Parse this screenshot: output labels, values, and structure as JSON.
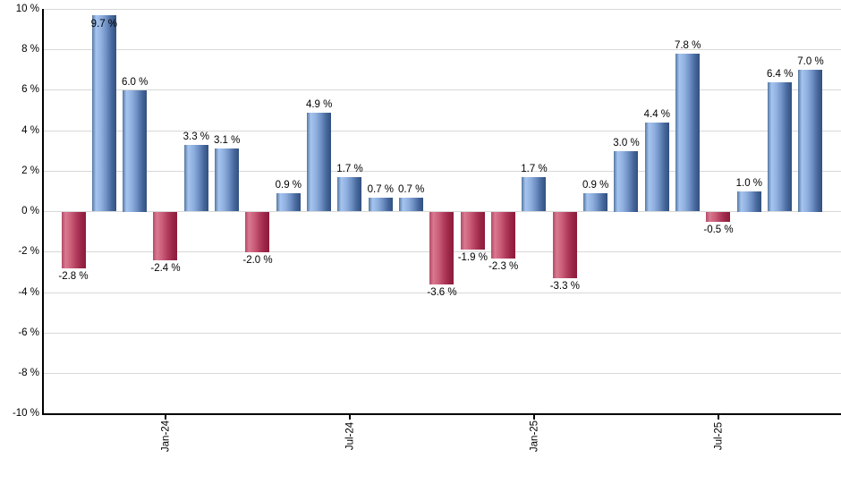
{
  "chart_data": {
    "type": "bar",
    "title": "",
    "xlabel": "",
    "ylabel": "",
    "ylim": [
      -10,
      10
    ],
    "y_tick_step": 2,
    "y_tick_labels": [
      "10 %",
      "8 %",
      "6 %",
      "4 %",
      "2 %",
      "0 %",
      "-2 %",
      "-4 %",
      "-6 %",
      "-8 %",
      "-10 %"
    ],
    "grid": "horizontal",
    "legend": "none",
    "values": [
      -2.8,
      9.7,
      6.0,
      -2.4,
      3.3,
      3.1,
      -2.0,
      0.9,
      4.9,
      1.7,
      0.7,
      0.7,
      -3.6,
      -1.9,
      -2.3,
      1.7,
      -3.3,
      0.9,
      3.0,
      4.4,
      7.8,
      -0.5,
      1.0,
      6.4,
      7.0
    ],
    "value_labels": [
      "-2.8 %",
      "9.7 %",
      "6.0 %",
      "-2.4 %",
      "3.3 %",
      "3.1 %",
      "-2.0 %",
      "0.9 %",
      "4.9 %",
      "1.7 %",
      "0.7 %",
      "0.7 %",
      "-3.6 %",
      "-1.9 %",
      "-2.3 %",
      "1.7 %",
      "-3.3 %",
      "0.9 %",
      "3.0 %",
      "4.4 %",
      "7.8 %",
      "-0.5 %",
      "1.0 %",
      "6.4 %",
      "7.0 %"
    ],
    "x_tick_labels": [
      {
        "bar_index": 3,
        "label": "Jan-24"
      },
      {
        "bar_index": 9,
        "label": "Jul-24"
      },
      {
        "bar_index": 15,
        "label": "Jan-25"
      },
      {
        "bar_index": 21,
        "label": "Jul-25"
      }
    ],
    "colors": {
      "background": "#FFFFFF",
      "gridline": "#D8D8D8",
      "axis": "#000000",
      "label_text": "#000000",
      "positive_bar_base": "#6F92C6",
      "negative_bar_base": "#B53A5C",
      "positive_bar_gradient": [
        {
          "color": "#54779F",
          "pos": 0
        },
        {
          "color": "#A6C4F0",
          "pos": 16
        },
        {
          "color": "#8FB0DF",
          "pos": 38
        },
        {
          "color": "#6C8EC2",
          "pos": 60
        },
        {
          "color": "#48699E",
          "pos": 80
        },
        {
          "color": "#32507E",
          "pos": 100
        }
      ],
      "negative_bar_gradient": [
        {
          "color": "#B24A69",
          "pos": 0
        },
        {
          "color": "#D97990",
          "pos": 16
        },
        {
          "color": "#CA5E79",
          "pos": 38
        },
        {
          "color": "#B23C5D",
          "pos": 60
        },
        {
          "color": "#9B2747",
          "pos": 80
        },
        {
          "color": "#8C1B3B",
          "pos": 100
        }
      ]
    }
  }
}
